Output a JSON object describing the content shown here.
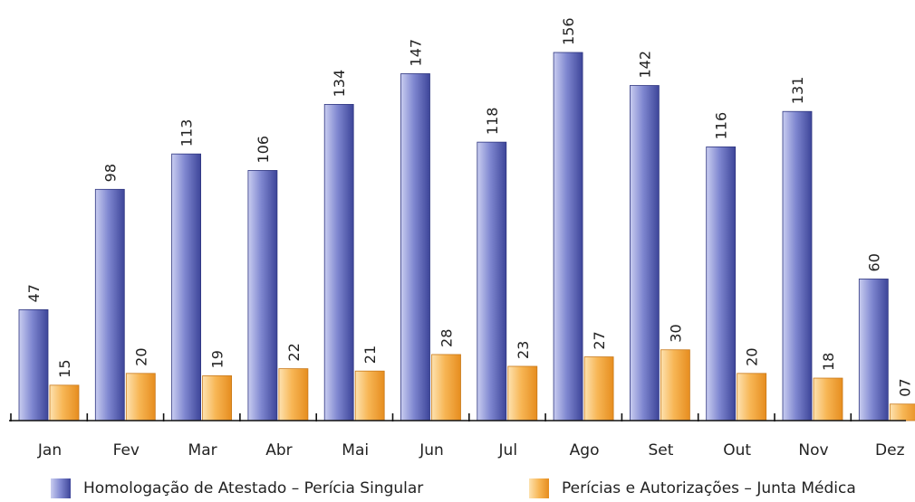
{
  "chart_data": {
    "type": "bar",
    "categories": [
      "Jan",
      "Fev",
      "Mar",
      "Abr",
      "Mai",
      "Jun",
      "Jul",
      "Ago",
      "Set",
      "Out",
      "Nov",
      "Dez"
    ],
    "series": [
      {
        "name": "Homologação de Atestado – Perícia Singular",
        "values": [
          47,
          98,
          113,
          106,
          134,
          147,
          118,
          156,
          142,
          116,
          131,
          60
        ],
        "labels": [
          "47",
          "98",
          "113",
          "106",
          "134",
          "147",
          "118",
          "156",
          "142",
          "116",
          "131",
          "60"
        ],
        "color": "#4a52a8"
      },
      {
        "name": "Perícias e Autorizações – Junta Médica",
        "values": [
          15,
          20,
          19,
          22,
          21,
          28,
          23,
          27,
          30,
          20,
          18,
          7
        ],
        "labels": [
          "15",
          "20",
          "19",
          "22",
          "21",
          "28",
          "23",
          "27",
          "30",
          "20",
          "18",
          "07"
        ],
        "color": "#f2a23a"
      }
    ],
    "title": "",
    "xlabel": "",
    "ylabel": "",
    "ylim": [
      0,
      160
    ],
    "grid": false,
    "legend_position": "bottom"
  }
}
